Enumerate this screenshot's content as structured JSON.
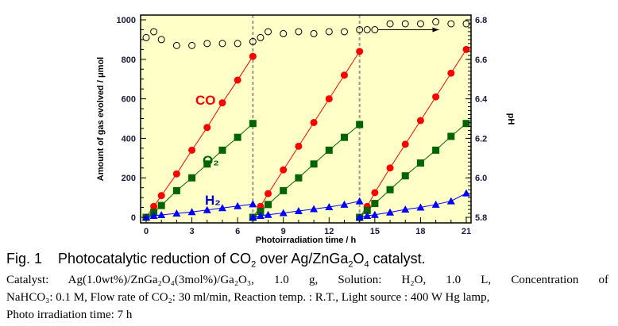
{
  "chart_data": {
    "type": "line",
    "title": "",
    "xlabel": "Photoirradiation time / h",
    "ylabel": "Amount of gas evolved / μmol",
    "y2label": "pH",
    "xlim": [
      0,
      21
    ],
    "ylim": [
      0,
      1000
    ],
    "y2lim": [
      5.8,
      6.8
    ],
    "xticks": [
      "0",
      "3",
      "6",
      "9",
      "12",
      "15",
      "18",
      "21"
    ],
    "yticks": [
      "0",
      "200",
      "400",
      "600",
      "800",
      "1000"
    ],
    "y2ticks": [
      "5.8",
      "6.0",
      "6.2",
      "6.4",
      "6.6",
      "6.8"
    ],
    "cycle_boundaries": [
      7,
      14
    ],
    "grid": false,
    "background": "#ffffc8",
    "series": [
      {
        "name": "CO",
        "label": "CO",
        "color": "#ff0000",
        "marker": "circle",
        "axis": "left",
        "runs": [
          {
            "x": [
              0,
              0.5,
              1,
              2,
              3,
              4,
              5,
              6,
              7
            ],
            "y": [
              0,
              55,
              110,
              220,
              340,
              455,
              580,
              695,
              815
            ]
          },
          {
            "x": [
              7,
              7.5,
              8,
              9,
              10,
              11,
              12,
              13,
              14
            ],
            "y": [
              0,
              55,
              120,
              240,
              360,
              480,
              600,
              720,
              840
            ]
          },
          {
            "x": [
              14,
              14.5,
              15,
              16,
              17,
              18,
              19,
              20,
              21
            ],
            "y": [
              0,
              55,
              125,
              250,
              370,
              490,
              610,
              730,
              850
            ]
          }
        ]
      },
      {
        "name": "O2",
        "label": "O₂",
        "color": "#006400",
        "marker": "square",
        "axis": "left",
        "runs": [
          {
            "x": [
              0,
              0.5,
              1,
              2,
              3,
              4,
              5,
              6,
              7
            ],
            "y": [
              0,
              25,
              60,
              135,
              200,
              270,
              340,
              405,
              475
            ]
          },
          {
            "x": [
              7,
              7.5,
              8,
              9,
              10,
              11,
              12,
              13,
              14
            ],
            "y": [
              0,
              30,
              65,
              135,
              200,
              270,
              340,
              405,
              470
            ]
          },
          {
            "x": [
              14,
              14.5,
              15,
              16,
              17,
              18,
              19,
              20,
              21
            ],
            "y": [
              0,
              35,
              70,
              140,
              210,
              275,
              340,
              410,
              475
            ]
          }
        ]
      },
      {
        "name": "H2",
        "label": "H₂",
        "color": "#0000ff",
        "marker": "triangle",
        "axis": "left",
        "runs": [
          {
            "x": [
              0,
              0.5,
              1,
              2,
              3,
              4,
              5,
              6,
              7
            ],
            "y": [
              0,
              8,
              12,
              20,
              27,
              37,
              47,
              57,
              67
            ]
          },
          {
            "x": [
              7,
              7.5,
              8,
              9,
              10,
              11,
              12,
              13,
              14
            ],
            "y": [
              0,
              8,
              13,
              22,
              32,
              42,
              52,
              65,
              82
            ]
          },
          {
            "x": [
              14,
              14.5,
              15,
              16,
              17,
              18,
              19,
              20,
              21
            ],
            "y": [
              0,
              8,
              13,
              25,
              40,
              50,
              65,
              82,
              122
            ]
          }
        ]
      },
      {
        "name": "pH",
        "label": "",
        "color": "#000000",
        "marker": "open-circle",
        "axis": "right",
        "runs": [
          {
            "x": [
              0,
              0.5,
              1,
              2,
              3,
              4,
              5,
              6,
              7,
              7.5,
              8,
              9,
              10,
              11,
              12,
              13,
              14,
              14.5,
              15,
              16,
              17,
              18,
              19,
              20,
              21
            ],
            "y": [
              6.71,
              6.74,
              6.7,
              6.67,
              6.67,
              6.68,
              6.68,
              6.68,
              6.69,
              6.71,
              6.74,
              6.73,
              6.74,
              6.73,
              6.74,
              6.74,
              6.75,
              6.75,
              6.75,
              6.78,
              6.78,
              6.78,
              6.79,
              6.78,
              6.78
            ]
          }
        ]
      }
    ],
    "annotations": [
      {
        "type": "arrow",
        "from": [
          15.2,
          6.75
        ],
        "to": [
          19.2,
          6.75
        ],
        "meaning": "pH belongs to right axis"
      }
    ]
  },
  "caption": {
    "fig_label": "Fig. 1",
    "title_pre": "Photocatalytic reduction of CO",
    "title_sub1": "2",
    "title_mid": " over Ag/ZnGa",
    "title_sub2": "2",
    "title_mid2": "O",
    "title_sub3": "4",
    "title_post": " catalyst."
  },
  "description": {
    "line1": "Catalyst:  Ag(1.0wt%)/ZnGa₂O₄(3mol%)/Ga₂O₃,  1.0  g,  Solution:  H₂O,  1.0  L,  Concentration  of",
    "line2": "NaHCO₃: 0.1 M, Flow rate of CO₂: 30 ml/min, Reaction temp. : R.T., Light source : 400 W Hg lamp,",
    "line3": "Photo irradiation time:    7 h"
  }
}
